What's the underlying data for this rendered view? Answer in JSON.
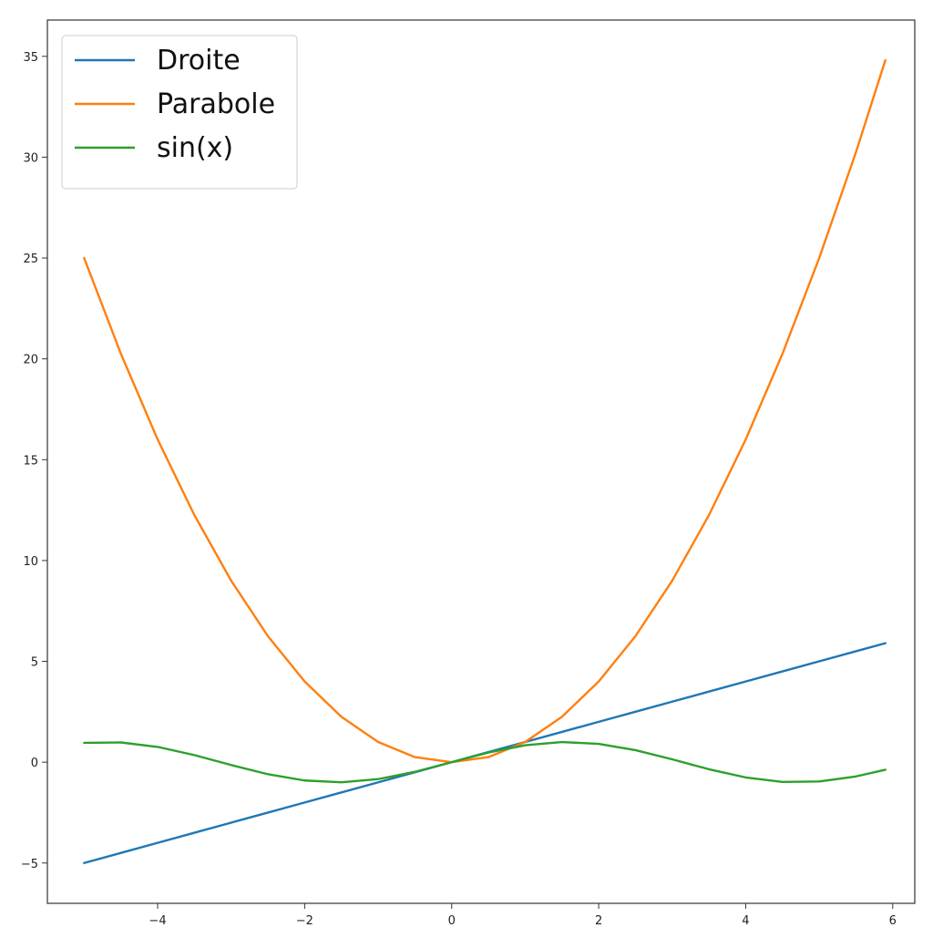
{
  "chart_data": {
    "type": "line",
    "title": "",
    "xlabel": "",
    "ylabel": "",
    "xlim": [
      -5.5,
      6.3
    ],
    "ylim": [
      -7.0,
      36.8
    ],
    "xticks": [
      -4,
      -2,
      0,
      2,
      4,
      6
    ],
    "xtick_labels": [
      "−4",
      "−2",
      "0",
      "2",
      "4",
      "6"
    ],
    "yticks": [
      -5,
      0,
      5,
      10,
      15,
      20,
      25,
      30,
      35
    ],
    "ytick_labels": [
      "−5",
      "0",
      "5",
      "10",
      "15",
      "20",
      "25",
      "30",
      "35"
    ],
    "grid": false,
    "legend_position": "top-left",
    "x": [
      -5.0,
      -4.5,
      -4.0,
      -3.5,
      -3.0,
      -2.5,
      -2.0,
      -1.5,
      -1.0,
      -0.5,
      0.0,
      0.5,
      1.0,
      1.5,
      2.0,
      2.5,
      3.0,
      3.5,
      4.0,
      4.5,
      5.0,
      5.5,
      5.9
    ],
    "series": [
      {
        "name": "Droite",
        "color": "#1f77b4",
        "values": [
          -5.0,
          -4.5,
          -4.0,
          -3.5,
          -3.0,
          -2.5,
          -2.0,
          -1.5,
          -1.0,
          -0.5,
          0.0,
          0.5,
          1.0,
          1.5,
          2.0,
          2.5,
          3.0,
          3.5,
          4.0,
          4.5,
          5.0,
          5.5,
          5.9
        ]
      },
      {
        "name": "Parabole",
        "color": "#ff7f0e",
        "values": [
          25.0,
          20.25,
          16.0,
          12.25,
          9.0,
          6.25,
          4.0,
          2.25,
          1.0,
          0.25,
          0.0,
          0.25,
          1.0,
          2.25,
          4.0,
          6.25,
          9.0,
          12.25,
          16.0,
          20.25,
          25.0,
          30.25,
          34.81
        ]
      },
      {
        "name": "sin(x)",
        "color": "#2ca02c",
        "values": [
          0.959,
          0.978,
          0.757,
          0.351,
          -0.141,
          -0.598,
          -0.909,
          -0.997,
          -0.841,
          -0.479,
          0.0,
          0.479,
          0.841,
          0.997,
          0.909,
          0.598,
          0.141,
          -0.351,
          -0.757,
          -0.978,
          -0.959,
          -0.706,
          -0.374
        ]
      }
    ]
  }
}
